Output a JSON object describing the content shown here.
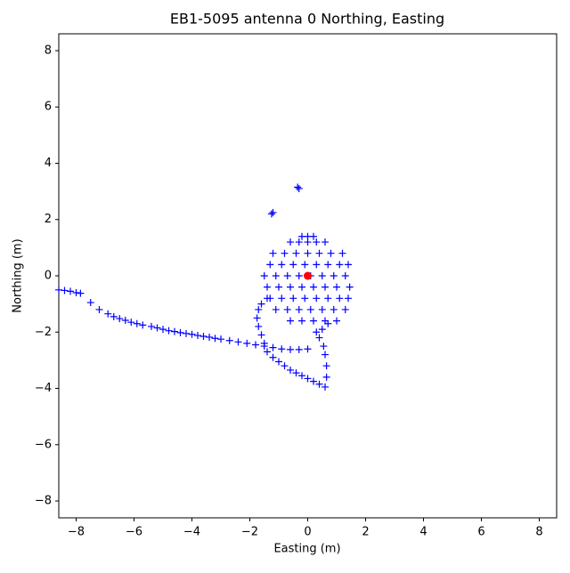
{
  "chart_data": {
    "type": "scatter",
    "title": "EB1-5095 antenna 0 Northing, Easting",
    "xlabel": "Easting (m)",
    "ylabel": "Northing (m)",
    "xlim": [
      -8.6,
      8.6
    ],
    "ylim": [
      -8.6,
      8.6
    ],
    "xticks": [
      {
        "value": -8,
        "label": "−8"
      },
      {
        "value": -6,
        "label": "−6"
      },
      {
        "value": -4,
        "label": "−4"
      },
      {
        "value": -2,
        "label": "−2"
      },
      0,
      2,
      4,
      6,
      8
    ],
    "yticks": [
      {
        "value": -8,
        "label": "−8"
      },
      {
        "value": -6,
        "label": "−6"
      },
      {
        "value": -4,
        "label": "−4"
      },
      {
        "value": -2,
        "label": "−2"
      },
      0,
      2,
      4,
      6,
      8
    ],
    "series": [
      {
        "color": "#0000ff",
        "marker": "+",
        "x": [
          -8.6,
          -8.4,
          -8.2,
          -8,
          -7.85,
          -7.5,
          -7.2,
          -6.9,
          -6.7,
          -6.5,
          -6.3,
          -6.1,
          -5.9,
          -5.7,
          -5.4,
          -5.2,
          -5,
          -4.8,
          -4.6,
          -4.4,
          -4.2,
          -4,
          -3.8,
          -3.6,
          -3.4,
          -3.2,
          -3,
          -2.7,
          -2.4,
          -2.1,
          -1.8,
          -1.5,
          -1.2,
          -0.9,
          -0.6,
          -0.3,
          0,
          -1.7,
          -1.75,
          -1.7,
          -1.6,
          -1.5,
          -1.4,
          -1.2,
          -1,
          -0.8,
          -0.6,
          -0.4,
          -0.2,
          0,
          0.2,
          0.4,
          0.6,
          0.65,
          0.65,
          0.6,
          0.55,
          0.4,
          0.3,
          0.5,
          0.7,
          -1.6,
          -1.4,
          -0.3,
          -0.35,
          -1.2,
          -1.25,
          -0.2,
          0,
          0.2,
          -0.6,
          -0.3,
          0,
          0.3,
          0.6,
          -1.2,
          -0.8,
          -0.4,
          0,
          0.4,
          0.8,
          1.2,
          -1.3,
          -0.9,
          -0.5,
          -0.1,
          0.3,
          0.7,
          1.1,
          1.4,
          -1.5,
          -1.1,
          -0.7,
          -0.3,
          0.1,
          0.5,
          0.9,
          1.3,
          -1.4,
          -1,
          -0.6,
          -0.2,
          0.2,
          0.6,
          1,
          1.45,
          -1.3,
          -0.9,
          -0.5,
          -0.1,
          0.3,
          0.7,
          1.1,
          1.4,
          -1.1,
          -0.7,
          -0.3,
          0.1,
          0.5,
          0.9,
          1.3,
          -0.6,
          -0.2,
          0.2,
          0.6,
          1
        ],
        "y": [
          -0.5,
          -0.52,
          -0.55,
          -0.6,
          -0.62,
          -0.95,
          -1.2,
          -1.35,
          -1.45,
          -1.52,
          -1.58,
          -1.65,
          -1.7,
          -1.75,
          -1.8,
          -1.85,
          -1.9,
          -1.95,
          -1.98,
          -2.02,
          -2.05,
          -2.08,
          -2.12,
          -2.15,
          -2.18,
          -2.22,
          -2.25,
          -2.3,
          -2.35,
          -2.4,
          -2.45,
          -2.5,
          -2.55,
          -2.6,
          -2.62,
          -2.62,
          -2.6,
          -1.2,
          -1.5,
          -1.8,
          -2.1,
          -2.4,
          -2.7,
          -2.9,
          -3.05,
          -3.2,
          -3.35,
          -3.45,
          -3.55,
          -3.65,
          -3.75,
          -3.85,
          -3.95,
          -3.6,
          -3.2,
          -2.8,
          -2.5,
          -2.2,
          -2,
          -1.9,
          -1.7,
          -1,
          -0.8,
          3.1,
          3.15,
          2.25,
          2.2,
          1.4,
          1.4,
          1.4,
          1.2,
          1.2,
          1.2,
          1.2,
          1.2,
          0.8,
          0.8,
          0.8,
          0.8,
          0.8,
          0.8,
          0.8,
          0.4,
          0.4,
          0.4,
          0.4,
          0.4,
          0.4,
          0.4,
          0.4,
          0,
          0,
          0,
          0,
          0,
          0,
          0,
          0,
          -0.4,
          -0.4,
          -0.4,
          -0.4,
          -0.4,
          -0.4,
          -0.4,
          -0.4,
          -0.8,
          -0.8,
          -0.8,
          -0.8,
          -0.8,
          -0.8,
          -0.8,
          -0.8,
          -1.2,
          -1.2,
          -1.2,
          -1.2,
          -1.2,
          -1.2,
          -1.2,
          -1.6,
          -1.6,
          -1.6,
          -1.6,
          -1.6
        ]
      },
      {
        "color": "#ff0000",
        "marker": "o",
        "x": [
          0
        ],
        "y": [
          0
        ]
      }
    ]
  }
}
